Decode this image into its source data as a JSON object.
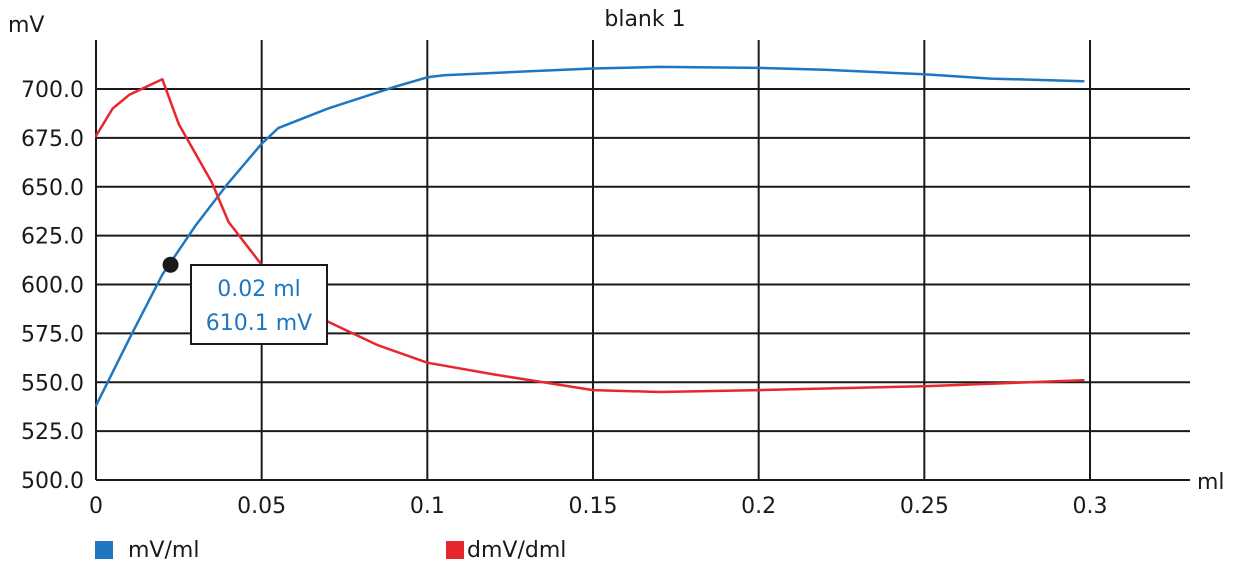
{
  "chart_data": {
    "type": "line",
    "title": "blank 1",
    "ylabel": "mV",
    "xlabel": "ml",
    "xlim": [
      0,
      0.3
    ],
    "ylim": [
      500,
      710
    ],
    "grid": true,
    "x_ticks": [
      0,
      0.05,
      0.1,
      0.15,
      0.2,
      0.25,
      0.3
    ],
    "x_tick_labels": [
      "0",
      "0.05",
      "0.1",
      "0.15",
      "0.2",
      "0.25",
      "0.3"
    ],
    "y_ticks": [
      500,
      525,
      550,
      575,
      600,
      625,
      650,
      675,
      700
    ],
    "y_tick_labels": [
      "500.0",
      "525.0",
      "550.0",
      "575.0",
      "600.0",
      "625.0",
      "650.0",
      "675.0",
      "700.0"
    ],
    "series": [
      {
        "name": "mV/ml",
        "color": "#1f77c2",
        "x": [
          0,
          0.01,
          0.02,
          0.03,
          0.04,
          0.05,
          0.055,
          0.07,
          0.09,
          0.1,
          0.105,
          0.13,
          0.15,
          0.17,
          0.2,
          0.22,
          0.25,
          0.27,
          0.298
        ],
        "y": [
          538,
          572,
          605,
          630,
          652,
          672,
          680,
          690,
          701,
          706,
          707,
          709,
          710.5,
          711.3,
          710.8,
          709.8,
          707.5,
          705.3,
          704
        ]
      },
      {
        "name": "dmV/dml",
        "color": "#e8262d",
        "x": [
          0,
          0.005,
          0.01,
          0.02,
          0.025,
          0.035,
          0.04,
          0.05,
          0.055,
          0.06,
          0.07,
          0.085,
          0.1,
          0.12,
          0.15,
          0.17,
          0.2,
          0.25,
          0.298
        ],
        "y": [
          676,
          690,
          697,
          705,
          682,
          652,
          632,
          610,
          600,
          590,
          581,
          569,
          560,
          554,
          546,
          545,
          546,
          548,
          551
        ]
      }
    ],
    "annotation": {
      "x": 0.0225,
      "y": 610.1,
      "lines": [
        "0.02 ml",
        "610.1 mV"
      ]
    },
    "legend": {
      "placement": "bottom",
      "entries": [
        "mV/ml",
        "dmV/dml"
      ]
    }
  }
}
